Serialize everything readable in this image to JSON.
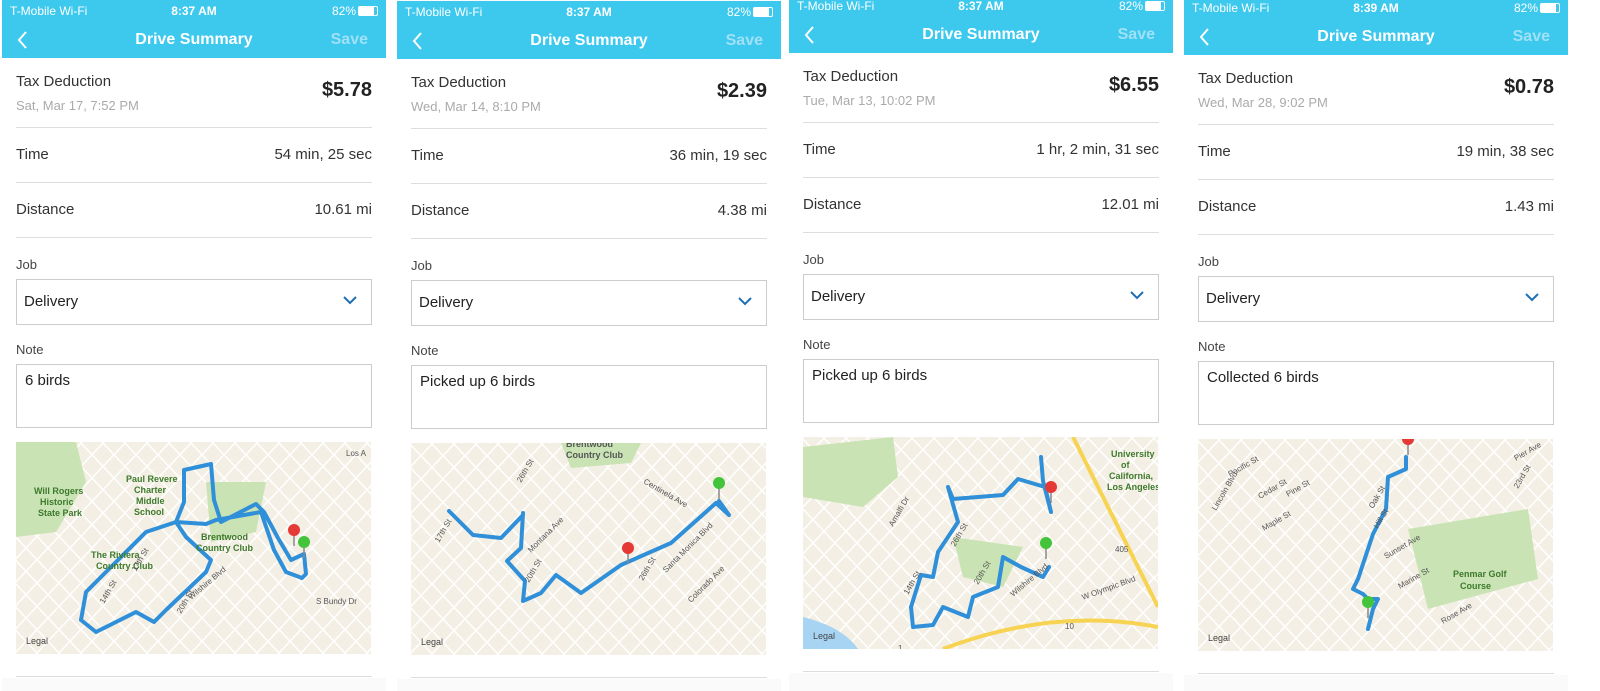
{
  "screens": [
    {
      "status": {
        "carrier": "T-Mobile Wi-Fi",
        "time": "8:37 AM",
        "battery": "82%"
      },
      "header": {
        "title": "Drive Summary",
        "save": "Save"
      },
      "tax": {
        "label": "Tax Deduction",
        "date": "Sat, Mar 17, 7:52 PM",
        "amount": "$5.78"
      },
      "rows": [
        {
          "label": "Time",
          "value": "54 min, 25 sec"
        },
        {
          "label": "Distance",
          "value": "10.61 mi"
        }
      ],
      "job": {
        "label": "Job",
        "value": "Delivery"
      },
      "note": {
        "label": "Note",
        "value": "6 birds"
      },
      "map": {
        "legal": "Legal",
        "labels": [
          "Will Rogers",
          "Historic",
          "State Park",
          "Paul Revere",
          "Charter",
          "Middle",
          "School",
          "Brentwood",
          "Country Club",
          "The Riviera",
          "Country Club",
          "17th St",
          "14th St",
          "20th St",
          "Wilshire Blvd",
          "S Bundy Dr",
          "Los A"
        ]
      }
    },
    {
      "status": {
        "carrier": "T-Mobile Wi-Fi",
        "time": "8:37 AM",
        "battery": "82%"
      },
      "header": {
        "title": "Drive Summary",
        "save": "Save"
      },
      "tax": {
        "label": "Tax Deduction",
        "date": "Wed, Mar 14, 8:10 PM",
        "amount": "$2.39"
      },
      "rows": [
        {
          "label": "Time",
          "value": "36 min, 19 sec"
        },
        {
          "label": "Distance",
          "value": "4.38 mi"
        }
      ],
      "job": {
        "label": "Job",
        "value": "Delivery"
      },
      "note": {
        "label": "Note",
        "value": "Picked up 6 birds"
      },
      "map": {
        "legal": "Legal",
        "labels": [
          "Brentwood",
          "Country Club",
          "26th St",
          "Centinela Ave",
          "17th St",
          "Montana Ave",
          "20th St",
          "26th St",
          "Santa Monica Blvd",
          "Colorado Ave"
        ]
      }
    },
    {
      "status": {
        "carrier": "T-Mobile Wi-Fi",
        "time": "8:37 AM",
        "battery": "82%"
      },
      "header": {
        "title": "Drive Summary",
        "save": "Save"
      },
      "tax": {
        "label": "Tax Deduction",
        "date": "Tue, Mar 13, 10:02 PM",
        "amount": "$6.55"
      },
      "rows": [
        {
          "label": "Time",
          "value": "1 hr, 2 min, 31 sec"
        },
        {
          "label": "Distance",
          "value": "12.01 mi"
        }
      ],
      "job": {
        "label": "Job",
        "value": "Delivery"
      },
      "note": {
        "label": "Note",
        "value": "Picked up 6 birds"
      },
      "map": {
        "legal": "Legal",
        "labels": [
          "University",
          "of",
          "California,",
          "Los Angeles",
          "Amalfi Dr",
          "26th St",
          "14th St",
          "20th St",
          "Wilshire Blvd",
          "W Olympic Blvd",
          "405",
          "10",
          "1"
        ]
      }
    },
    {
      "status": {
        "carrier": "T-Mobile Wi-Fi",
        "time": "8:39 AM",
        "battery": "82%"
      },
      "header": {
        "title": "Drive Summary",
        "save": "Save"
      },
      "tax": {
        "label": "Tax Deduction",
        "date": "Wed, Mar 28, 9:02 PM",
        "amount": "$0.78"
      },
      "rows": [
        {
          "label": "Time",
          "value": "19 min, 38 sec"
        },
        {
          "label": "Distance",
          "value": "1.43 mi"
        }
      ],
      "job": {
        "label": "Job",
        "value": "Delivery"
      },
      "note": {
        "label": "Note",
        "value": "Collected 6 birds"
      },
      "map": {
        "legal": "Legal",
        "labels": [
          "Pacific St",
          "Cedar St",
          "Pine St",
          "Lincoln Blvd",
          "Maple St",
          "Oak St",
          "Hill St",
          "Sunset Ave",
          "Marine St",
          "Penmar Golf",
          "Course",
          "Rose Ave",
          "Pier Ave",
          "23rd St"
        ]
      }
    }
  ]
}
